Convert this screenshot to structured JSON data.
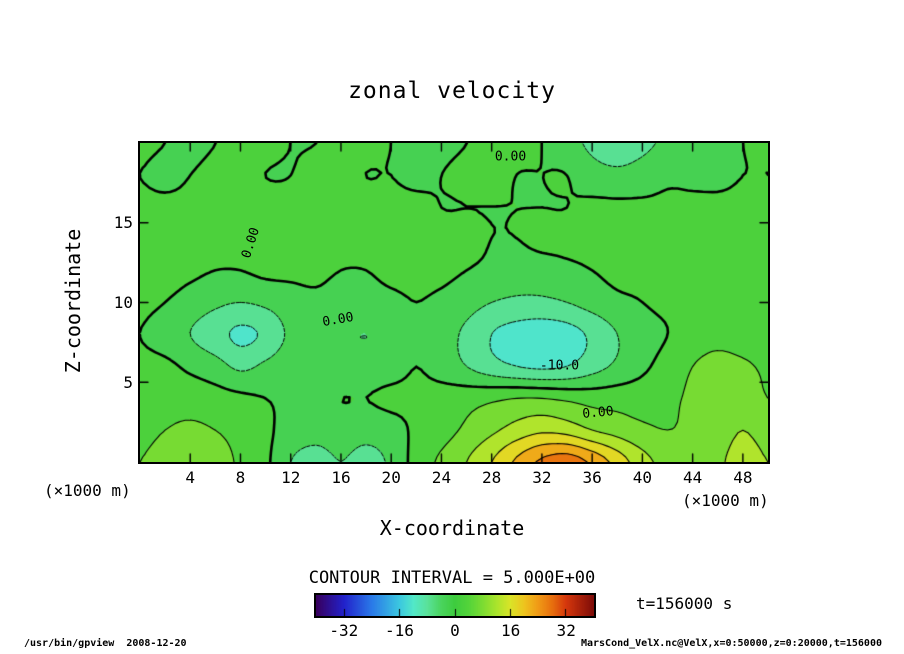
{
  "title": "zonal velocity",
  "plot": {
    "x_axis": {
      "label": "X-coordinate",
      "unit": "(×1000 m)",
      "range": [
        0,
        50
      ],
      "ticks": [
        4,
        8,
        12,
        16,
        20,
        24,
        28,
        32,
        36,
        40,
        44,
        48
      ]
    },
    "y_axis": {
      "label": "Z-coordinate",
      "unit": "(×1000 m)",
      "range": [
        0,
        20
      ],
      "ticks": [
        5,
        10,
        15
      ]
    }
  },
  "contour_note": "CONTOUR INTERVAL = 5.000E+00",
  "time_label": "t=156000 s",
  "footer": {
    "left": "/usr/bin/gpview  2008-12-20",
    "right": "MarsCond_VelX.nc@VelX,x=0:50000,z=0:20000,t=156000"
  },
  "chart_data": {
    "type": "heatmap",
    "subtype": "filled-contour",
    "title": "zonal velocity",
    "xlabel": "X-coordinate (×1000 m)",
    "ylabel": "Z-coordinate (×1000 m)",
    "x_range": [
      0,
      50
    ],
    "z_range": [
      0,
      20
    ],
    "x": [
      0,
      2,
      4,
      6,
      8,
      10,
      12,
      14,
      16,
      18,
      20,
      22,
      24,
      26,
      28,
      30,
      32,
      34,
      36,
      38,
      40,
      42,
      44,
      46,
      48,
      50
    ],
    "z": [
      0,
      2,
      4,
      6,
      8,
      10,
      12,
      14,
      16,
      18,
      20
    ],
    "values_order": "rows from z=0 (bottom) to z=20 (top)",
    "values": [
      [
        5,
        8,
        10,
        8,
        4,
        1,
        -5,
        -7,
        -5,
        -7,
        -4,
        2,
        6,
        10,
        15,
        21,
        26,
        28,
        24,
        18,
        12,
        8,
        6,
        9,
        12,
        10
      ],
      [
        3,
        5,
        6,
        5,
        3,
        1,
        -2,
        -3,
        -2,
        -3,
        -2,
        1,
        3,
        6,
        9,
        12,
        14,
        13,
        10,
        8,
        6,
        5,
        6,
        8,
        10,
        8
      ],
      [
        2,
        3,
        3,
        2,
        1,
        0,
        -1,
        -1,
        0,
        0,
        1,
        1,
        2,
        3,
        4,
        5,
        5,
        4,
        3,
        3,
        3,
        4,
        6,
        9,
        8,
        5
      ],
      [
        1,
        1,
        -1,
        -3,
        -6,
        -4,
        -2,
        -2,
        -3,
        -3,
        -2,
        0,
        -2,
        -5,
        -8,
        -10,
        -11,
        -10,
        -7,
        -4,
        -1,
        2,
        5,
        7,
        6,
        4
      ],
      [
        0,
        -2,
        -5,
        -8,
        -11,
        -9,
        -4,
        -3,
        -4,
        -5,
        -3,
        -1,
        -3,
        -6,
        -10,
        -12,
        -13,
        -12,
        -9,
        -5,
        -2,
        0,
        2,
        3,
        2,
        1
      ],
      [
        1,
        0,
        -2,
        -4,
        -5,
        -4,
        -2,
        -1,
        -2,
        -2,
        -1,
        0,
        -1,
        -3,
        -5,
        -6,
        -6,
        -5,
        -3,
        -1,
        0,
        1,
        1,
        1,
        1,
        1
      ],
      [
        2,
        2,
        1,
        0,
        0,
        1,
        1,
        1,
        0,
        0,
        1,
        1,
        1,
        0,
        -1,
        -2,
        -2,
        -1,
        0,
        1,
        1,
        2,
        2,
        2,
        2,
        2
      ],
      [
        2,
        2,
        2,
        1,
        1,
        1,
        2,
        2,
        1,
        1,
        1,
        1,
        1,
        1,
        0,
        0,
        1,
        1,
        1,
        1,
        2,
        2,
        2,
        2,
        2,
        2
      ],
      [
        1,
        1,
        1,
        1,
        1,
        1,
        1,
        1,
        1,
        1,
        1,
        1,
        0,
        0,
        0,
        0,
        0,
        0,
        1,
        1,
        1,
        1,
        1,
        1,
        1,
        1
      ],
      [
        0,
        -1,
        0,
        1,
        1,
        0,
        0,
        1,
        1,
        0,
        0,
        -1,
        0,
        1,
        1,
        0,
        0,
        0,
        -3,
        -4,
        -3,
        -1,
        -1,
        -1,
        0,
        0
      ],
      [
        1,
        0,
        -1,
        0,
        1,
        1,
        0,
        0,
        1,
        1,
        0,
        -1,
        -1,
        0,
        1,
        1,
        0,
        -3,
        -6,
        -7,
        -6,
        -4,
        -2,
        -1,
        0,
        1
      ]
    ],
    "contour_interval": 5.0,
    "contour_levels_shown": [
      -15,
      -10,
      -5,
      0,
      5,
      10,
      15,
      20,
      25
    ],
    "negative_contours_dashed": true,
    "zero_contour_thick": true,
    "colorbar": {
      "range": [
        -40,
        40
      ],
      "ticks": [
        -32,
        -16,
        0,
        16,
        32
      ],
      "stops": [
        [
          -40,
          "#38005E"
        ],
        [
          -32,
          "#2222CC"
        ],
        [
          -24,
          "#2A7AE8"
        ],
        [
          -16,
          "#3CC8E0"
        ],
        [
          -12,
          "#52E8C8"
        ],
        [
          -8,
          "#5AE29A"
        ],
        [
          -4,
          "#4AD45E"
        ],
        [
          0,
          "#3ECC3E"
        ],
        [
          4,
          "#54D43A"
        ],
        [
          8,
          "#7CDC32"
        ],
        [
          12,
          "#AAE42C"
        ],
        [
          16,
          "#DAE428"
        ],
        [
          20,
          "#EEC41E"
        ],
        [
          24,
          "#F09A16"
        ],
        [
          28,
          "#E8700E"
        ],
        [
          32,
          "#D6380C"
        ],
        [
          40,
          "#7E0C08"
        ]
      ]
    },
    "annotations": [
      {
        "text": "0.00",
        "x": 29.5,
        "z": 19.1,
        "rot": 0
      },
      {
        "text": "0.00",
        "x": 8.8,
        "z": 13.7,
        "rot": -72
      },
      {
        "text": "0.00",
        "x": 15.8,
        "z": 8.9,
        "rot": -10
      },
      {
        "text": "-10.0",
        "x": 33.4,
        "z": 6.0,
        "rot": 0
      },
      {
        "text": "0.00",
        "x": 36.5,
        "z": 3.1,
        "rot": -5
      }
    ],
    "time": "t=156000 s"
  }
}
